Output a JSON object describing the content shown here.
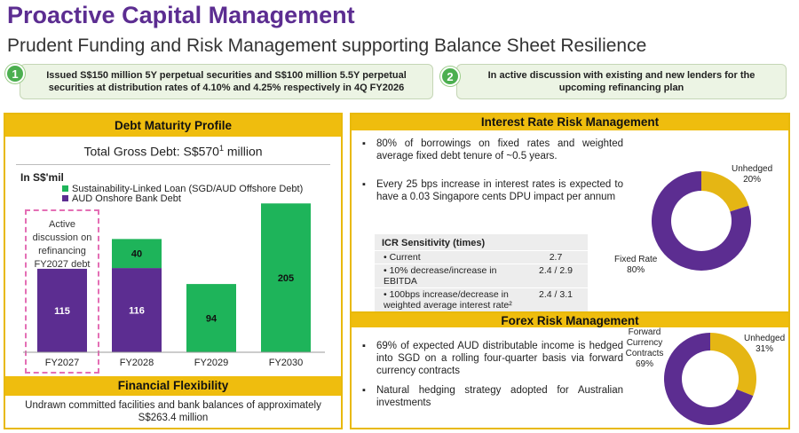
{
  "header": {
    "title": "Proactive Capital Management",
    "subtitle": "Prudent Funding and Risk Management supporting Balance Sheet Resilience"
  },
  "callouts": [
    {
      "number": "1",
      "text": "Issued S$150 million 5Y perpetual securities and S$100 million 5.5Y perpetual securities at distribution rates of 4.10% and 4.25% respectively in 4Q FY2026"
    },
    {
      "number": "2",
      "text": "In active discussion with existing and new lenders for the upcoming refinancing plan"
    }
  ],
  "debt_maturity": {
    "heading": "Debt Maturity Profile",
    "total_prefix": "Total Gross Debt: S$570",
    "total_sup": "1",
    "total_suffix": " million",
    "unit": "In S$'mil",
    "annotation": "Active discussion on refinancing FY2027 debt"
  },
  "financial_flexibility": {
    "heading": "Financial Flexibility",
    "text": "Undrawn committed facilities and bank balances of approximately S$263.4 million"
  },
  "interest_rate": {
    "heading": "Interest Rate Risk Management",
    "bullets": [
      "80% of borrowings on fixed rates and weighted average fixed debt tenure of ~0.5 years.",
      "Every 25 bps increase in interest rates is expected to have a 0.03 Singapore cents DPU impact per annum"
    ],
    "icr": {
      "title": "ICR Sensitivity (times)",
      "rows": [
        {
          "label": "Current",
          "value": "2.7"
        },
        {
          "label": "10% decrease/increase in EBITDA",
          "value": "2.4 / 2.9"
        },
        {
          "label": "100bps increase/decrease in weighted average interest rate²",
          "value": "2.4 / 3.1"
        }
      ]
    },
    "pie_labels": {
      "unhedged": "Unhedged",
      "unhedged_pct": "20%",
      "fixed": "Fixed Rate",
      "fixed_pct": "80%"
    }
  },
  "forex": {
    "heading": "Forex Risk Management",
    "bullets": [
      "69% of expected AUD distributable income is hedged into SGD on a rolling four-quarter basis via forward currency contracts",
      "Natural hedging strategy adopted for Australian investments"
    ],
    "pie_labels": {
      "forward": "Forward Currency Contracts",
      "forward_pct": "69%",
      "unhedged": "Unhedged",
      "unhedged_pct": "31%"
    }
  },
  "colors": {
    "purple": "#5c2d91",
    "green": "#1eb45a",
    "gold": "#e5b614",
    "header_gold": "#efbd0e"
  },
  "chart_data": [
    {
      "type": "bar",
      "stacked": true,
      "categories": [
        "FY2027",
        "FY2028",
        "FY2029",
        "FY2030"
      ],
      "series": [
        {
          "name": "AUD Onshore Bank Debt",
          "values": [
            115,
            116,
            0,
            0
          ],
          "color": "#5c2d91"
        },
        {
          "name": "Sustainability-Linked Loan (SGD/AUD Offshore Debt)",
          "values": [
            0,
            40,
            94,
            205
          ],
          "color": "#1eb45a"
        }
      ],
      "ylim": [
        0,
        220
      ],
      "legend_position": "top-left"
    },
    {
      "type": "pie",
      "donut": true,
      "labels": [
        "Fixed Rate",
        "Unhedged"
      ],
      "values": [
        80,
        20
      ],
      "colors": [
        "#5c2d91",
        "#e5b614"
      ]
    },
    {
      "type": "pie",
      "donut": true,
      "labels": [
        "Forward Currency Contracts",
        "Unhedged"
      ],
      "values": [
        69,
        31
      ],
      "colors": [
        "#5c2d91",
        "#e5b614"
      ]
    }
  ]
}
